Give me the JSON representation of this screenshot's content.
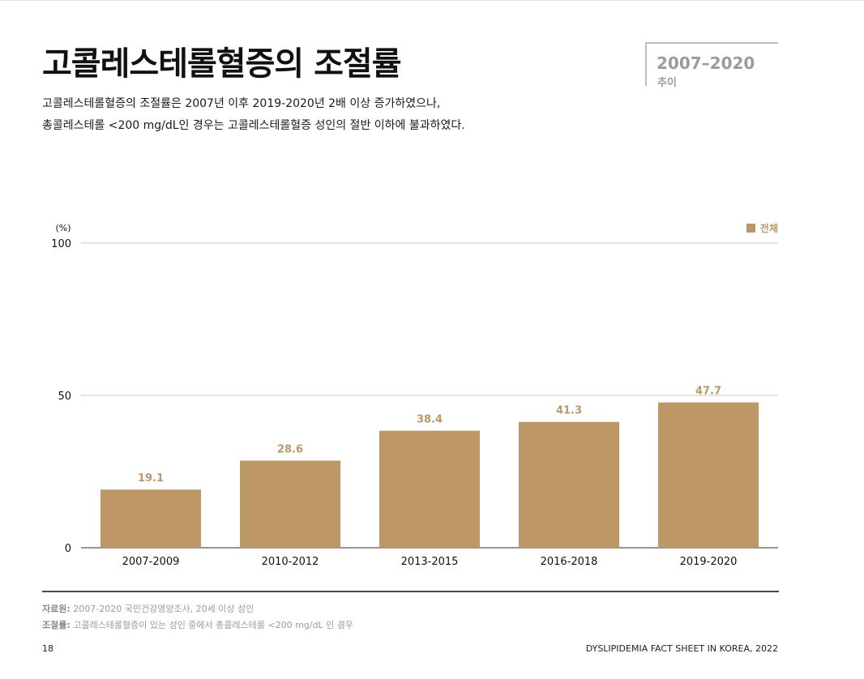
{
  "header": {
    "title": "고콜레스테롤혈증의 조절률",
    "period_range": "2007–2020",
    "period_sub": "추이"
  },
  "lead": {
    "line1": "고콜레스테롤혈증의 조절률은 2007년 이후 2019-2020년 2배 이상 증가하였으나,",
    "line2": "총콜레스테롤 <200 mg/dL인 경우는 고콜레스테롤혈증 성인의 절반 이하에 불과하였다."
  },
  "legend": {
    "label": "전체"
  },
  "colors": {
    "bar": "#bd9766",
    "grid": "#c8c8c8",
    "axis": "#555555",
    "text": "#111111"
  },
  "chart_data": {
    "type": "bar",
    "ylabel": "(%)",
    "ylim": [
      0,
      100
    ],
    "yticks": [
      0,
      50,
      100
    ],
    "categories": [
      "2007-2009",
      "2010-2012",
      "2013-2015",
      "2016-2018",
      "2019-2020"
    ],
    "series": [
      {
        "name": "전체",
        "values": [
          19.1,
          28.6,
          38.4,
          41.3,
          47.7
        ],
        "labels": [
          "19.1",
          "28.6",
          "38.4",
          "41.3",
          "47.7"
        ]
      }
    ],
    "legend_position": "top-right",
    "grid": true
  },
  "notes": {
    "source_label": "자료원:",
    "source_text": " 2007-2020 국민건강영양조사, 20세 이상 성인",
    "def_label": "조절률:",
    "def_text": " 고콜레스테롤혈증이 있는 성인 중에서 총콜레스테롤 <200 mg/dL 인 경우"
  },
  "footer": {
    "page_number": "18",
    "title": "DYSLIPIDEMIA FACT SHEET IN KOREA, 2022"
  }
}
